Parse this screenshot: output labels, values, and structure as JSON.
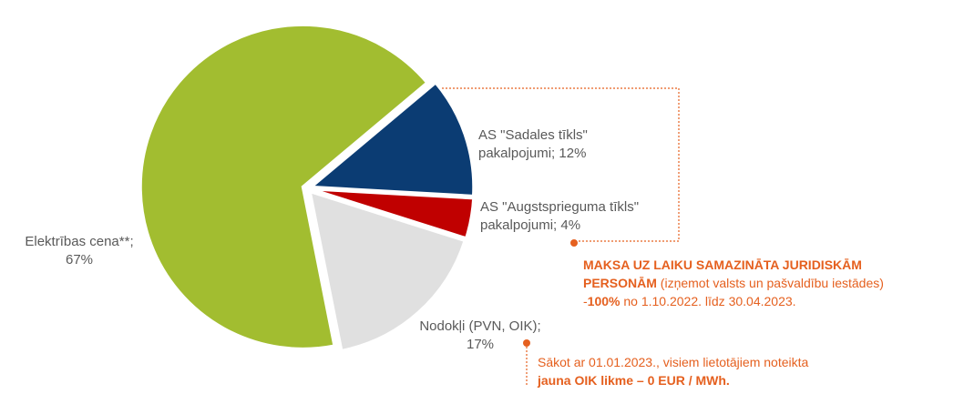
{
  "chart_data": {
    "type": "pie",
    "categories": [
      "AS \"Sadales tīkls\" pakalpojumi;",
      "AS \"Augstsprieguma tīkls\" pakalpojumi;",
      "Nodokļi (PVN, OIK);",
      "Elektrības cena**;"
    ],
    "values": [
      12,
      4,
      17,
      67
    ],
    "value_labels": [
      "12%",
      "4%",
      "17%",
      "67%"
    ],
    "colors": [
      "#0b3c73",
      "#c00000",
      "#e0e0e0",
      "#a2bd30"
    ]
  },
  "annotations": [
    {
      "lines": [
        [
          {
            "text": "MAKSA UZ LAIKU SAMAZINĀTA JURIDISKĀM",
            "bold": true
          }
        ],
        [
          {
            "text": "PERSONĀM",
            "bold": true
          },
          {
            "text": " (izņemot valsts un pašvaldību iestādes)",
            "bold": false
          }
        ],
        [
          {
            "text": "-",
            "bold": false
          },
          {
            "text": "100%",
            "bold": true
          },
          {
            "text": " no 1.10.2022. līdz 30.04.2023.",
            "bold": false
          }
        ]
      ]
    },
    {
      "lines": [
        [
          {
            "text": "Sākot ar 01.01.2023., visiem lietotājiem noteikta",
            "bold": false
          }
        ],
        [
          {
            "text": "jauna OIK likme – 0 EUR / MWh.",
            "bold": true
          }
        ]
      ]
    }
  ]
}
